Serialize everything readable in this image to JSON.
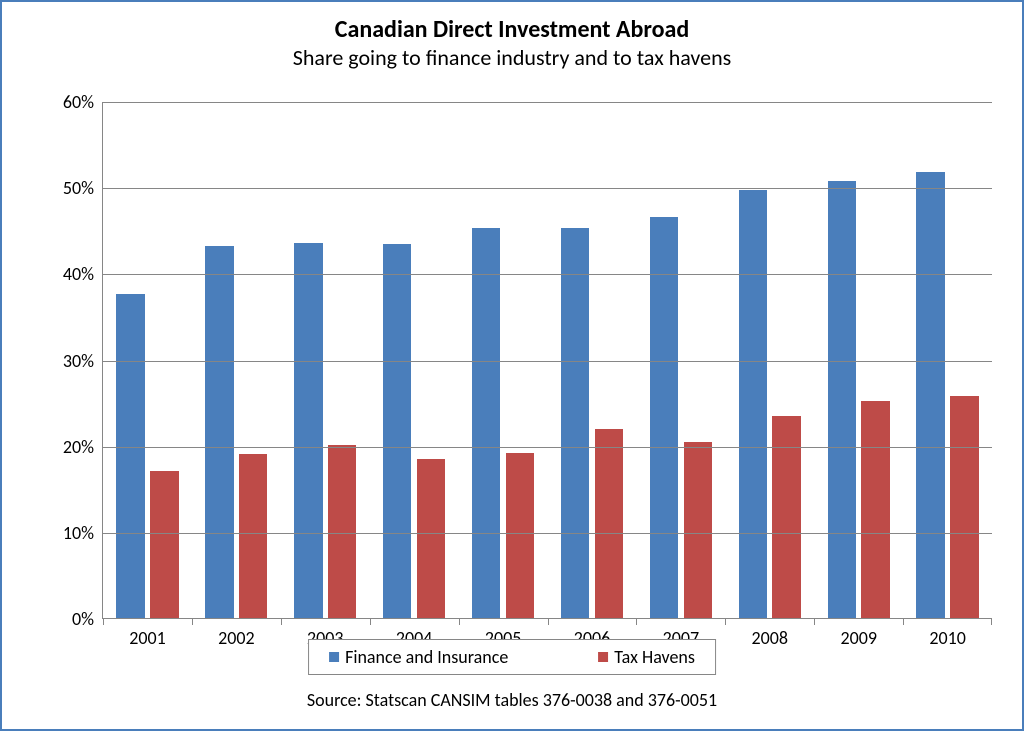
{
  "chart": {
    "type": "bar",
    "title": "Canadian  Direct Investment Abroad",
    "subtitle": "Share going to finance industry and to tax havens",
    "title_fontsize": 24,
    "subtitle_fontsize": 22,
    "title_weight": "700",
    "font_family": "Calibri, \"Segoe UI\", Arial, sans-serif",
    "background_color": "#ffffff",
    "border_color": "#4a7ebb",
    "grid_color": "#868686",
    "axis_color": "#868686",
    "categories": [
      "2001",
      "2002",
      "2003",
      "2004",
      "2005",
      "2006",
      "2007",
      "2008",
      "2009",
      "2010"
    ],
    "series": [
      {
        "name": "Finance and Insurance",
        "color": "#4a7ebb",
        "values": [
          37.7,
          43.3,
          43.6,
          43.5,
          45.4,
          45.4,
          46.6,
          49.8,
          50.8,
          51.9
        ]
      },
      {
        "name": "Tax Havens",
        "color": "#be4b48",
        "values": [
          17.2,
          19.1,
          20.2,
          18.6,
          19.3,
          22.1,
          20.5,
          23.6,
          25.3,
          25.9
        ]
      }
    ],
    "y": {
      "min": 0,
      "max": 60,
      "tick_step": 10,
      "ticks": [
        0,
        10,
        20,
        30,
        40,
        50,
        60
      ],
      "tick_labels": [
        "0%",
        "10%",
        "20%",
        "30%",
        "40%",
        "50%",
        "60%"
      ],
      "label_fontsize": 18
    },
    "x": {
      "label_fontsize": 18
    },
    "bar": {
      "group_gap_pct": 30,
      "bar_gap_pct": 6
    },
    "legend": {
      "border_color": "#868686",
      "fontsize": 18,
      "swatch_size": 10
    },
    "source": "Source: Statscan CANSIM tables 376-0038 and 376-0051",
    "source_fontsize": 18
  }
}
